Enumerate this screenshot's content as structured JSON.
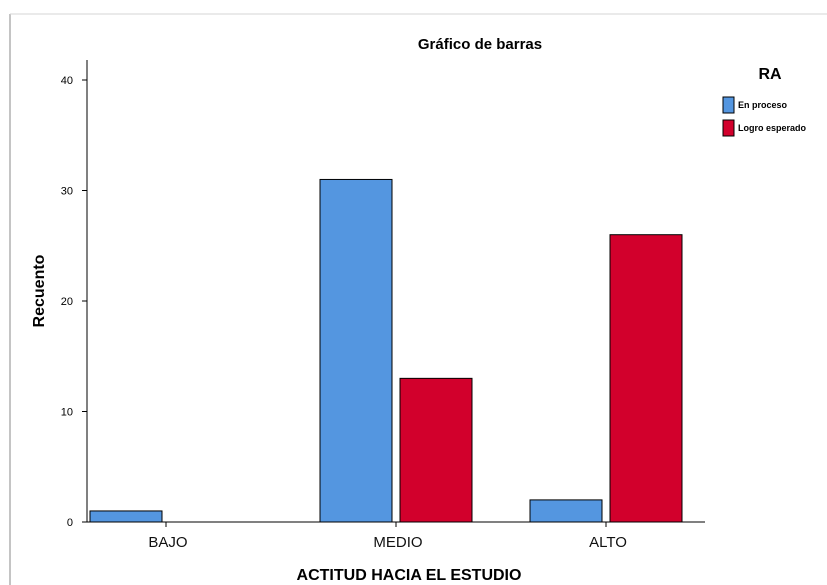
{
  "chart_data": {
    "type": "bar",
    "title": "Gráfico de barras",
    "xlabel": "ACTITUD HACIA EL ESTUDIO",
    "ylabel": "Recuento",
    "categories": [
      "BAJO",
      "MEDIO",
      "ALTO"
    ],
    "series": [
      {
        "name": "En proceso",
        "values": [
          1,
          31,
          2
        ],
        "color": "#5496e0"
      },
      {
        "name": "Logro esperado",
        "values": [
          0,
          13,
          26
        ],
        "color": "#d2002c"
      }
    ],
    "yticks": [
      "0",
      "10",
      "20",
      "30",
      "40"
    ],
    "ylim": [
      0,
      40
    ],
    "legend": {
      "title": "RA",
      "position": "top-right"
    },
    "grid": false
  }
}
